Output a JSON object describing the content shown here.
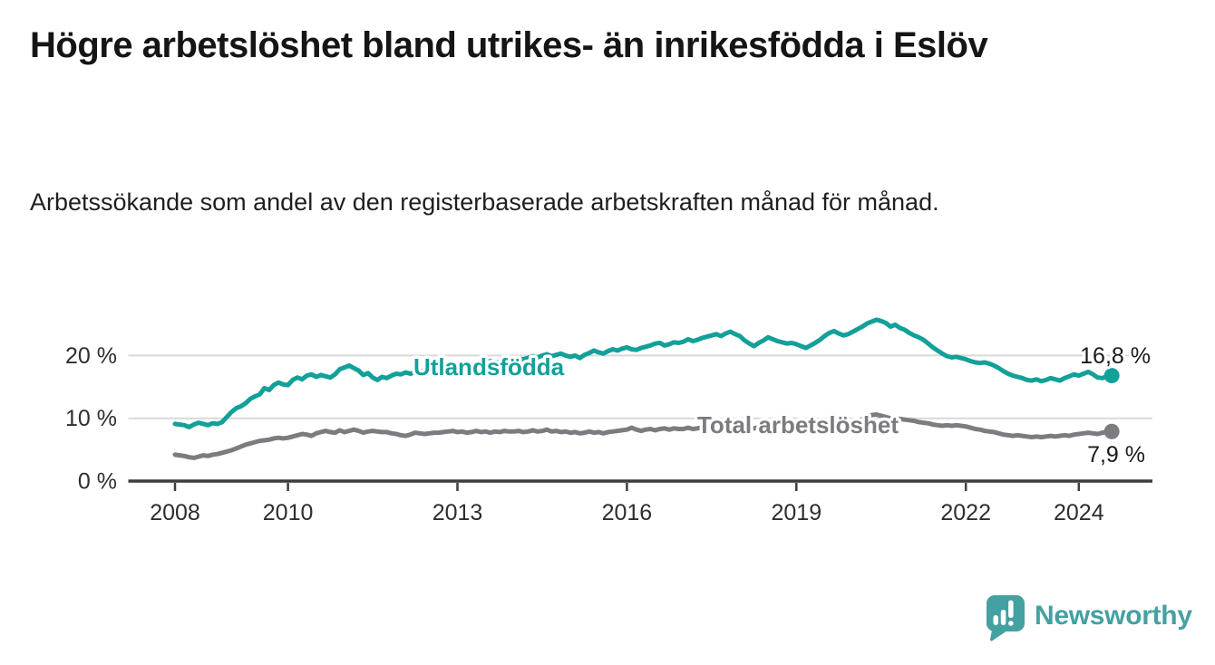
{
  "header": {
    "title": "Högre arbetslöshet bland utrikes- än inrikesfödda i Eslöv",
    "subtitle": "Arbetssökande som andel av den registerbaserade arbetskraften månad för månad."
  },
  "footer": {
    "brand": "Newsworthy",
    "brand_color": "#44a1a2",
    "logo_icon": "speech-bubble-bar-chart-exclamation-icon"
  },
  "colors": {
    "foreign_born_line": "#13a099",
    "total_line": "#7c7c80",
    "axis": "#3d3d3d",
    "gridline": "#d9d9d9",
    "label_text": "#1a1a1a",
    "tick_text": "#2e2e2e"
  },
  "chart_data": {
    "type": "line",
    "title": "Högre arbetslöshet bland utrikes- än inrikesfödda i Eslöv",
    "subtitle": "Arbetssökande som andel av den registerbaserade arbetskraften månad för månad.",
    "x_unit": "month",
    "x_start_year": 2008,
    "x_start_month": 1,
    "x_end_year": 2024,
    "x_end_month": 8,
    "x_ticks": [
      {
        "year": 2008,
        "label": "2008"
      },
      {
        "year": 2010,
        "label": "2010"
      },
      {
        "year": 2013,
        "label": "2013"
      },
      {
        "year": 2016,
        "label": "2016"
      },
      {
        "year": 2019,
        "label": "2019"
      },
      {
        "year": 2022,
        "label": "2022"
      },
      {
        "year": 2024,
        "label": "2024"
      }
    ],
    "y_ticks": [
      {
        "value": 0,
        "label": "0 %"
      },
      {
        "value": 10,
        "label": "10 %"
      },
      {
        "value": 20,
        "label": "20 %"
      }
    ],
    "ylim": [
      0,
      27
    ],
    "grid": "horizontal",
    "legend": "inline-labels",
    "series": [
      {
        "name": "Utlandsfödda",
        "color": "#13a099",
        "end_label": "16,8 %",
        "end_value": 16.8,
        "values": [
          9.1,
          9.0,
          8.9,
          8.6,
          9.0,
          9.3,
          9.1,
          8.9,
          9.2,
          9.1,
          9.4,
          10.2,
          11.0,
          11.6,
          11.9,
          12.4,
          13.1,
          13.5,
          13.8,
          14.8,
          14.5,
          15.3,
          15.7,
          15.4,
          15.3,
          16.1,
          16.5,
          16.2,
          16.8,
          17.0,
          16.6,
          16.9,
          16.7,
          16.5,
          17.0,
          17.8,
          18.1,
          18.4,
          18.0,
          17.6,
          16.9,
          17.2,
          16.5,
          16.1,
          16.6,
          16.4,
          16.8,
          17.1,
          17.0,
          17.3,
          17.1,
          17.4,
          17.6,
          17.5,
          17.7,
          17.9,
          17.7,
          17.9,
          18.1,
          18.0,
          18.2,
          18.4,
          18.3,
          18.5,
          18.8,
          18.6,
          18.9,
          19.1,
          18.9,
          19.0,
          19.2,
          19.1,
          19.3,
          19.5,
          19.4,
          19.6,
          19.9,
          19.7,
          20.0,
          20.2,
          19.9,
          20.1,
          20.3,
          20.0,
          19.8,
          20.0,
          19.6,
          20.1,
          20.4,
          20.8,
          20.5,
          20.3,
          20.7,
          21.0,
          20.8,
          21.1,
          21.3,
          21.0,
          20.9,
          21.2,
          21.4,
          21.6,
          21.9,
          22.0,
          21.6,
          21.8,
          22.1,
          22.0,
          22.2,
          22.6,
          22.3,
          22.5,
          22.8,
          23.0,
          23.2,
          23.4,
          23.1,
          23.5,
          23.8,
          23.4,
          23.1,
          22.4,
          21.9,
          21.5,
          22.0,
          22.4,
          22.9,
          22.6,
          22.3,
          22.1,
          21.9,
          22.0,
          21.8,
          21.5,
          21.2,
          21.6,
          22.0,
          22.5,
          23.1,
          23.6,
          23.9,
          23.5,
          23.2,
          23.4,
          23.8,
          24.2,
          24.6,
          25.1,
          25.4,
          25.7,
          25.5,
          25.2,
          24.6,
          24.9,
          24.4,
          24.1,
          23.6,
          23.2,
          22.9,
          22.5,
          21.9,
          21.3,
          20.8,
          20.3,
          19.9,
          19.7,
          19.8,
          19.6,
          19.4,
          19.1,
          18.9,
          18.8,
          18.9,
          18.7,
          18.4,
          18.0,
          17.5,
          17.1,
          16.8,
          16.6,
          16.4,
          16.1,
          16.0,
          16.2,
          15.9,
          16.1,
          16.4,
          16.2,
          16.0,
          16.4,
          16.7,
          17.0,
          16.8,
          17.1,
          17.4,
          17.0,
          16.5,
          16.4,
          16.7,
          16.8
        ]
      },
      {
        "name": "Total arbetslöshet",
        "color": "#7c7c80",
        "end_label": "7,9 %",
        "end_value": 7.9,
        "values": [
          4.2,
          4.1,
          4.0,
          3.8,
          3.7,
          3.9,
          4.1,
          4.0,
          4.2,
          4.3,
          4.5,
          4.7,
          4.9,
          5.2,
          5.5,
          5.8,
          6.0,
          6.2,
          6.4,
          6.5,
          6.6,
          6.8,
          6.9,
          6.8,
          6.9,
          7.1,
          7.3,
          7.5,
          7.4,
          7.2,
          7.6,
          7.8,
          8.0,
          7.8,
          7.7,
          8.1,
          7.8,
          8.0,
          8.2,
          8.0,
          7.7,
          7.9,
          8.0,
          7.9,
          7.8,
          7.8,
          7.6,
          7.5,
          7.3,
          7.2,
          7.4,
          7.7,
          7.6,
          7.5,
          7.6,
          7.7,
          7.7,
          7.8,
          7.9,
          8.0,
          7.8,
          7.9,
          7.7,
          7.8,
          8.0,
          7.8,
          7.9,
          7.7,
          7.9,
          7.8,
          8.0,
          7.9,
          7.9,
          8.0,
          7.8,
          7.9,
          8.1,
          7.9,
          8.0,
          8.2,
          7.9,
          8.0,
          7.8,
          7.9,
          7.7,
          7.8,
          7.6,
          7.7,
          7.9,
          7.7,
          7.8,
          7.6,
          7.8,
          7.9,
          8.0,
          8.1,
          8.2,
          8.5,
          8.2,
          8.0,
          8.2,
          8.3,
          8.1,
          8.3,
          8.4,
          8.2,
          8.4,
          8.3,
          8.3,
          8.5,
          8.3,
          8.4,
          8.6,
          8.4,
          8.5,
          8.3,
          8.4,
          8.5,
          8.4,
          8.6,
          8.5,
          8.4,
          8.3,
          8.4,
          8.6,
          8.5,
          8.7,
          8.5,
          8.4,
          8.6,
          8.5,
          8.7,
          8.6,
          8.5,
          8.7,
          8.6,
          8.8,
          8.7,
          8.9,
          8.8,
          8.7,
          8.9,
          8.8,
          9.0,
          9.2,
          9.5,
          9.9,
          10.3,
          10.5,
          10.6,
          10.4,
          10.2,
          10.0,
          10.1,
          9.9,
          9.8,
          9.7,
          9.6,
          9.4,
          9.3,
          9.2,
          9.0,
          8.9,
          8.8,
          8.9,
          8.8,
          8.9,
          8.8,
          8.7,
          8.5,
          8.3,
          8.2,
          8.0,
          7.9,
          7.8,
          7.6,
          7.4,
          7.3,
          7.2,
          7.3,
          7.2,
          7.1,
          7.0,
          7.1,
          7.0,
          7.1,
          7.2,
          7.1,
          7.2,
          7.3,
          7.2,
          7.4,
          7.5,
          7.6,
          7.7,
          7.6,
          7.5,
          7.7,
          7.8,
          7.9
        ]
      }
    ]
  }
}
